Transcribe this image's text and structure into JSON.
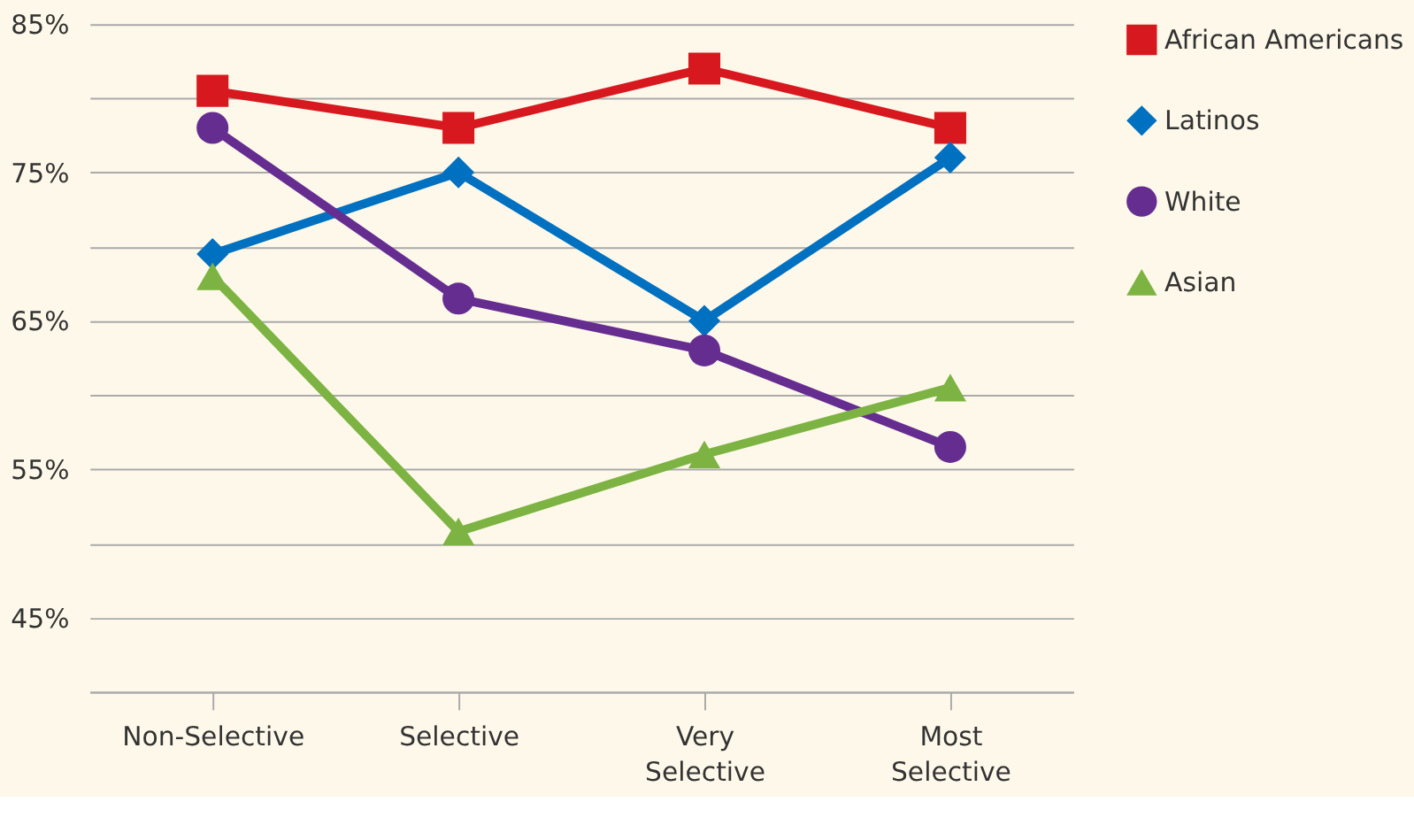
{
  "chart_data": {
    "type": "line",
    "categories": [
      "Non-Selective",
      "Selective",
      "Very Selective",
      "Most Selective"
    ],
    "series": [
      {
        "name": "African Americans",
        "color": "#d7191f",
        "marker": "square",
        "values": [
          80.5,
          78,
          82,
          78
        ]
      },
      {
        "name": "Latinos",
        "color": "#0070c0",
        "marker": "diamond",
        "values": [
          69.5,
          75,
          65,
          76
        ]
      },
      {
        "name": "White",
        "color": "#662d91",
        "marker": "circle",
        "values": [
          78,
          66.5,
          63,
          56.5
        ]
      },
      {
        "name": "Asian",
        "color": "#7cb342",
        "marker": "triangle",
        "values": [
          68,
          50.8,
          56,
          60.5
        ]
      }
    ],
    "ylim": [
      40,
      85
    ],
    "yticks": [
      {
        "value": 40,
        "label": null
      },
      {
        "value": 45,
        "label": "45%"
      },
      {
        "value": 50,
        "label": null
      },
      {
        "value": 55,
        "label": "55%"
      },
      {
        "value": 60,
        "label": null
      },
      {
        "value": 65,
        "label": "65%"
      },
      {
        "value": 70,
        "label": null
      },
      {
        "value": 75,
        "label": "75%"
      },
      {
        "value": 80,
        "label": null
      },
      {
        "value": 85,
        "label": "85%"
      }
    ],
    "grid": "y",
    "legend": "right",
    "line_style": "solid"
  }
}
